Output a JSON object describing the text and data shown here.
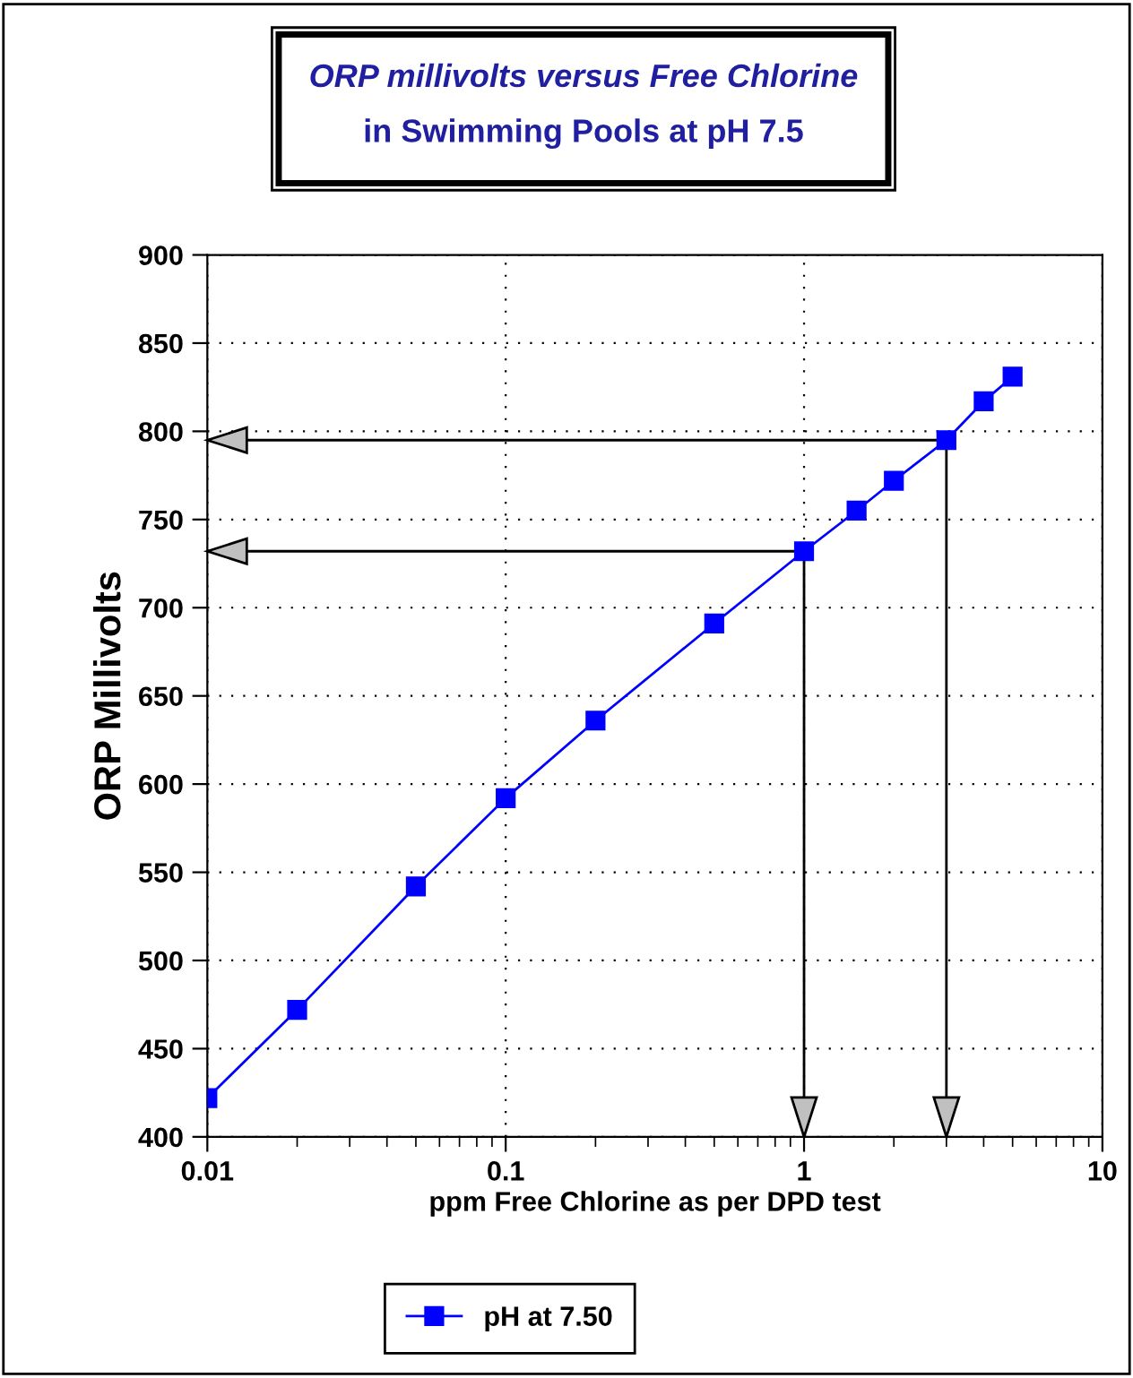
{
  "chart_data": {
    "type": "line",
    "title": "ORP millivolts versus Free Chlorine",
    "subtitle": "in Swimming Pools at pH 7.5",
    "xlabel": "ppm Free Chlorine as per DPD test",
    "ylabel": "ORP Millivolts",
    "log": "x",
    "xlim": [
      0.01,
      10
    ],
    "xticks": [
      0.01,
      0.1,
      1,
      10
    ],
    "ylim": [
      400,
      900
    ],
    "yticks": [
      400,
      450,
      500,
      550,
      600,
      650,
      700,
      750,
      800,
      850,
      900
    ],
    "grid": true,
    "legend": "bottom",
    "marker": "square",
    "line_style": "solid",
    "series": [
      {
        "name": "pH at 7.50",
        "color": "#0000ff",
        "x": [
          0.01,
          0.02,
          0.05,
          0.1,
          0.2,
          0.5,
          1,
          1.5,
          2,
          3,
          4,
          5
        ],
        "values": [
          422,
          472,
          542,
          592,
          636,
          691,
          732,
          755,
          772,
          795,
          817,
          831
        ]
      }
    ],
    "ref_lines": [
      {
        "axis": "x",
        "value": 1,
        "color": "#000000",
        "line_style": "solid"
      },
      {
        "axis": "x",
        "value": 3,
        "color": "#000000",
        "line_style": "solid"
      },
      {
        "axis": "y",
        "value": 732,
        "color": "#000000",
        "line_style": "solid"
      },
      {
        "axis": "y",
        "value": 795,
        "color": "#000000",
        "line_style": "solid"
      }
    ]
  }
}
